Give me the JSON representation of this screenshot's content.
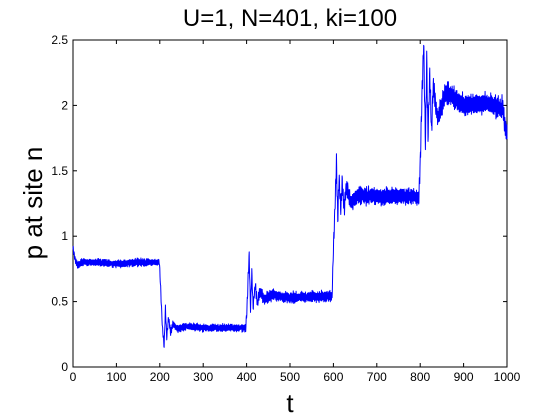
{
  "chart_data": {
    "type": "line",
    "title": "U=1, N=401, ki=100",
    "xlabel": "t",
    "ylabel": "p at site n",
    "xlim": [
      0,
      1000
    ],
    "ylim": [
      0,
      2.5
    ],
    "xticks": [
      0,
      100,
      200,
      300,
      400,
      500,
      600,
      700,
      800,
      900,
      1000
    ],
    "yticks": [
      0,
      0.5,
      1,
      1.5,
      2,
      2.5
    ],
    "xtick_labels": [
      "0",
      "100",
      "200",
      "300",
      "400",
      "500",
      "600",
      "700",
      "800",
      "900",
      "1000"
    ],
    "ytick_labels": [
      "0",
      "0.5",
      "1",
      "1.5",
      "2",
      "2.5"
    ],
    "grid": false,
    "legend": "none",
    "series": [
      {
        "color": "#0000ff",
        "x": [
          0,
          5,
          10,
          20,
          50,
          100,
          150,
          199,
          202,
          206,
          210,
          213,
          216,
          220,
          225,
          230,
          240,
          260,
          300,
          350,
          398,
          401,
          404,
          406,
          409,
          412,
          415,
          420,
          425,
          430,
          440,
          460,
          500,
          550,
          597,
          600,
          604,
          607,
          610,
          613,
          617,
          620,
          625,
          630,
          640,
          660,
          700,
          750,
          797,
          800,
          804,
          808,
          812,
          815,
          818,
          822,
          826,
          830,
          840,
          860,
          900,
          950,
          990,
          1000
        ],
        "y": [
          0.9,
          0.82,
          0.78,
          0.8,
          0.8,
          0.79,
          0.8,
          0.8,
          0.6,
          0.3,
          0.16,
          0.45,
          0.22,
          0.38,
          0.26,
          0.33,
          0.29,
          0.31,
          0.3,
          0.3,
          0.3,
          0.45,
          0.72,
          0.86,
          0.44,
          0.72,
          0.46,
          0.63,
          0.48,
          0.58,
          0.52,
          0.55,
          0.53,
          0.54,
          0.54,
          0.9,
          1.25,
          1.58,
          1.12,
          1.45,
          1.2,
          1.42,
          1.22,
          1.38,
          1.26,
          1.32,
          1.3,
          1.31,
          1.3,
          1.55,
          2.05,
          2.48,
          1.7,
          2.35,
          1.75,
          2.25,
          1.8,
          2.15,
          1.9,
          2.1,
          2.0,
          2.02,
          1.98,
          1.75
        ]
      }
    ]
  }
}
